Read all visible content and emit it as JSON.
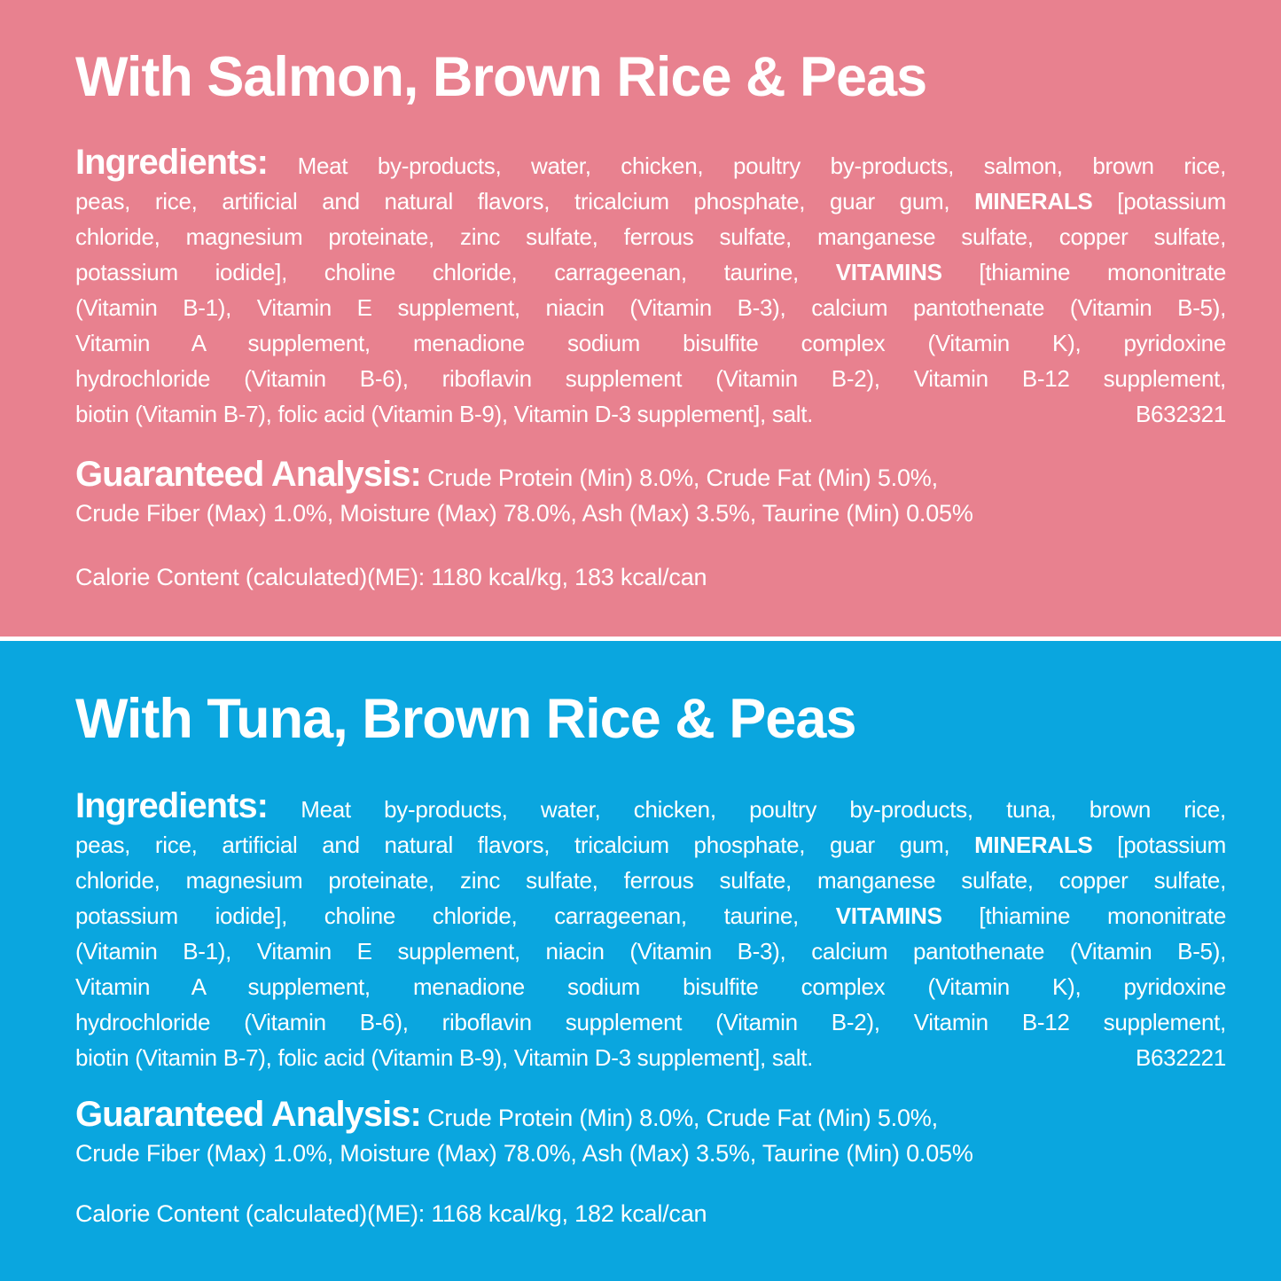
{
  "divider_color": "#ffffff",
  "sections": [
    {
      "title": "With Salmon, Brown Rice & Peas",
      "background_color": "#e8818f",
      "ingredients_label": "Ingredients:",
      "ingredients_first_text": "Meat by-products, water, chicken, poultry by-products, salmon, brown rice,",
      "ingredients_mid_lines": [
        "peas, rice, artificial and natural flavors, tricalcium phosphate, guar gum, **MINERALS** [potassium",
        "chloride, magnesium proteinate, zinc sulfate, ferrous sulfate, manganese sulfate, copper sulfate,",
        "potassium iodide], choline chloride, carrageenan, taurine, **VITAMINS** [thiamine mononitrate",
        "(Vitamin B-1), Vitamin E supplement, niacin (Vitamin B-3), calcium pantothenate (Vitamin B-5),",
        "Vitamin A supplement, menadione sodium bisulfite complex (Vitamin K), pyridoxine",
        "hydrochloride (Vitamin B-6), riboflavin supplement (Vitamin B-2), Vitamin B-12 supplement,"
      ],
      "ingredients_last_line": "biotin (Vitamin B-7), folic acid (Vitamin B-9), Vitamin D-3 supplement], salt.",
      "batch_code": "B632321",
      "analysis_label": "Guaranteed Analysis:",
      "analysis_line1": "Crude Protein (Min) 8.0%, Crude Fat (Min) 5.0%,",
      "analysis_line2": "Crude Fiber (Max) 1.0%, Moisture (Max) 78.0%, Ash (Max) 3.5%, Taurine (Min) 0.05%",
      "calorie_line": "Calorie Content (calculated)(ME): 1180 kcal/kg, 183 kcal/can"
    },
    {
      "title": "With Tuna, Brown Rice & Peas",
      "background_color": "#0aa6df",
      "ingredients_label": "Ingredients:",
      "ingredients_first_text": "Meat by-products, water, chicken, poultry by-products, tuna, brown rice,",
      "ingredients_mid_lines": [
        "peas, rice, artificial and natural flavors, tricalcium phosphate, guar gum, **MINERALS** [potassium",
        "chloride, magnesium proteinate, zinc sulfate, ferrous sulfate, manganese sulfate, copper sulfate,",
        "potassium iodide], choline chloride, carrageenan, taurine, **VITAMINS** [thiamine mononitrate",
        "(Vitamin B-1), Vitamin E supplement, niacin (Vitamin B-3), calcium pantothenate (Vitamin B-5),",
        "Vitamin A supplement, menadione sodium bisulfite complex (Vitamin K), pyridoxine",
        "hydrochloride (Vitamin B-6), riboflavin supplement (Vitamin B-2), Vitamin B-12 supplement,"
      ],
      "ingredients_last_line": "biotin (Vitamin B-7), folic acid (Vitamin B-9), Vitamin D-3 supplement], salt.",
      "batch_code": "B632221",
      "analysis_label": "Guaranteed Analysis:",
      "analysis_line1": "Crude Protein (Min) 8.0%, Crude Fat (Min) 5.0%,",
      "analysis_line2": "Crude Fiber (Max) 1.0%, Moisture (Max) 78.0%, Ash (Max) 3.5%, Taurine (Min) 0.05%",
      "calorie_line": "Calorie Content (calculated)(ME): 1168 kcal/kg, 182 kcal/can"
    }
  ]
}
